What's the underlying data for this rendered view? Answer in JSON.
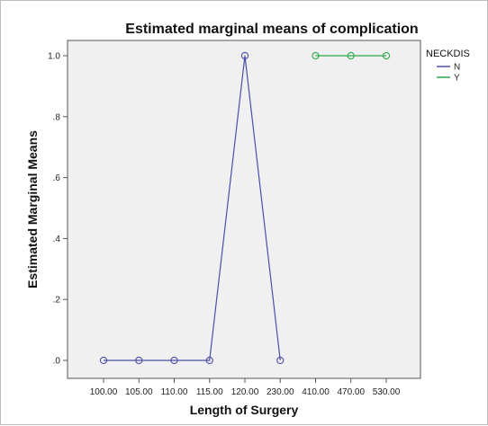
{
  "chart_data": {
    "type": "line",
    "title": "Estimated marginal means of complication",
    "xlabel": "Length of Surgery",
    "ylabel": "Estimated Marginal Means",
    "categories": [
      "100.00",
      "105.00",
      "110.00",
      "115.00",
      "120.00",
      "230.00",
      "410.00",
      "470.00",
      "530.00"
    ],
    "yticks": [
      ".0",
      ".2",
      ".4",
      ".6",
      ".8",
      "1.0"
    ],
    "ylim": [
      0,
      1
    ],
    "legend_title": "NECKDIS",
    "legend_position": "right",
    "series": [
      {
        "name": "N",
        "color": "#4a4fa8",
        "values": [
          0,
          0,
          0,
          0,
          1,
          0,
          null,
          null,
          null
        ]
      },
      {
        "name": "Y",
        "color": "#2ea84a",
        "values": [
          null,
          null,
          null,
          null,
          null,
          null,
          1,
          1,
          1
        ]
      }
    ],
    "plot_background": "#f0f0f0",
    "grid": false
  }
}
